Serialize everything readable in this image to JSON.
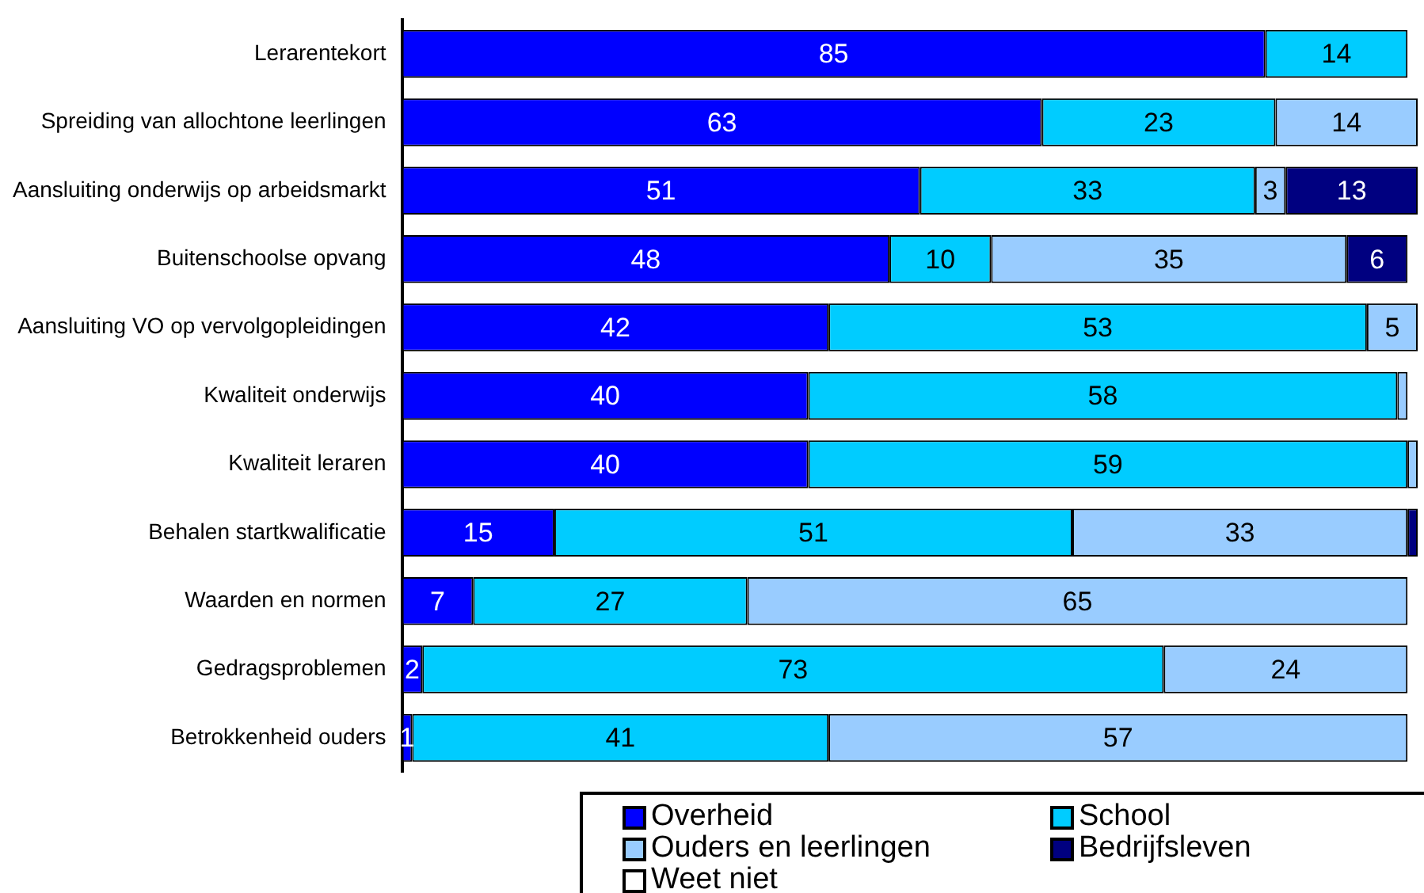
{
  "chart_data": {
    "type": "bar",
    "orientation": "horizontal",
    "stacked": true,
    "grid": false,
    "legend": "bottom",
    "tick_labels": "y",
    "xlim": [
      0,
      100
    ],
    "categories": [
      "Lerarentekort",
      "Spreiding van allochtone leerlingen",
      "Aansluiting onderwijs op arbeidsmarkt",
      "Buitenschoolse opvang",
      "Aansluiting VO op vervolgopleidingen",
      "Kwaliteit onderwijs",
      "Kwaliteit leraren",
      "Behalen startkwalificatie",
      "Waarden en normen",
      "Gedragsproblemen",
      "Betrokkenheid ouders"
    ],
    "series": [
      {
        "name": "Overheid",
        "color": "#0000ff",
        "values": [
          85,
          63,
          51,
          48,
          42,
          40,
          40,
          15,
          7,
          2,
          1
        ],
        "value_labels": [
          "85",
          "63",
          "51",
          "48",
          "42",
          "40",
          "40",
          "15",
          "7",
          "2",
          "1"
        ]
      },
      {
        "name": "School",
        "color": "#00ccff",
        "values": [
          14,
          23,
          33,
          10,
          53,
          58,
          59,
          51,
          27,
          73,
          41
        ],
        "value_labels": [
          "14",
          "23",
          "33",
          "10",
          "53",
          "58",
          "59",
          "51",
          "27",
          "73",
          "41"
        ]
      },
      {
        "name": "Ouders en leerlingen",
        "color": "#99ccff",
        "values": [
          null,
          14,
          3,
          35,
          5,
          1,
          1,
          33,
          65,
          24,
          57
        ],
        "value_labels": [
          null,
          "14",
          "3",
          "35",
          "5",
          null,
          null,
          "33",
          "65",
          "24",
          "57"
        ]
      },
      {
        "name": "Bedrijfsleven",
        "color": "#000080",
        "values": [
          null,
          null,
          13,
          6,
          null,
          null,
          null,
          1,
          null,
          null,
          null
        ],
        "value_labels": [
          null,
          null,
          "13",
          "6",
          null,
          null,
          null,
          null,
          null,
          null,
          null
        ]
      },
      {
        "name": "Weet niet",
        "color": "#ffffff",
        "values": [
          null,
          null,
          null,
          null,
          null,
          null,
          null,
          null,
          null,
          null,
          null
        ]
      }
    ]
  }
}
